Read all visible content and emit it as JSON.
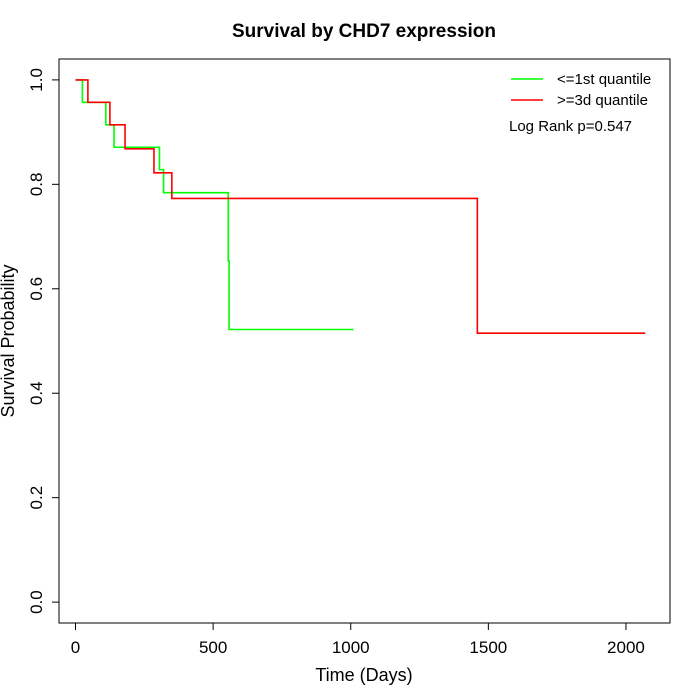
{
  "colors": {
    "low": "#00ff00",
    "high": "#ff0000",
    "axis": "#000000"
  },
  "chart_data": {
    "type": "line",
    "step": true,
    "title": "Survival by CHD7 expression",
    "xlabel": "Time (Days)",
    "ylabel": "Survival Probability",
    "xlim": [
      -60,
      2160
    ],
    "ylim": [
      -0.04,
      1.04
    ],
    "xticks": [
      0,
      500,
      1000,
      1500,
      2000
    ],
    "xtick_labels": [
      "0",
      "500",
      "1000",
      "1500",
      "2000"
    ],
    "yticks": [
      0.0,
      0.2,
      0.4,
      0.6,
      0.8,
      1.0
    ],
    "ytick_labels": [
      "0.0",
      "0.2",
      "0.4",
      "0.6",
      "0.8",
      "1.0"
    ],
    "grid": false,
    "legend_position": "top-right",
    "annotation": "Log Rank p=0.547",
    "series": [
      {
        "name": "<=1st quantile",
        "color": "#00ff00",
        "x": [
          0,
          25,
          110,
          140,
          305,
          320,
          555,
          558,
          1010
        ],
        "y": [
          1.0,
          0.957,
          0.914,
          0.871,
          0.828,
          0.784,
          0.653,
          0.522,
          0.522
        ]
      },
      {
        "name": ">=3d quantile",
        "color": "#ff0000",
        "x": [
          0,
          45,
          125,
          180,
          285,
          350,
          1460,
          2070
        ],
        "y": [
          1.0,
          0.957,
          0.914,
          0.868,
          0.822,
          0.773,
          0.515,
          0.515
        ]
      }
    ]
  }
}
